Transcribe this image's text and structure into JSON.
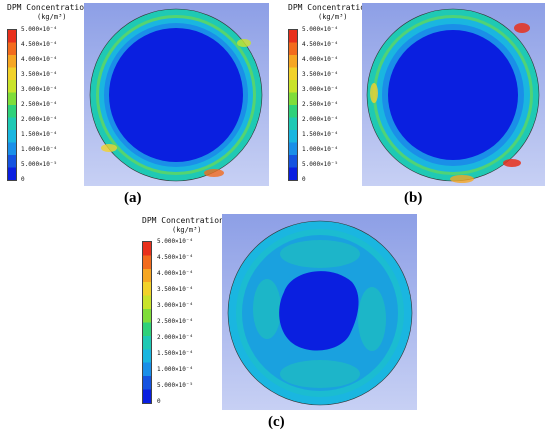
{
  "legend": {
    "title": "DPM Concentration/",
    "unit": "(kg/m³)",
    "ticks": [
      "5.000×10⁻⁴",
      "4.500×10⁻⁴",
      "4.000×10⁻⁴",
      "3.500×10⁻⁴",
      "3.000×10⁻⁴",
      "2.500×10⁻⁴",
      "2.000×10⁻⁴",
      "1.500×10⁻⁴",
      "1.000×10⁻⁴",
      "5.000×10⁻⁵",
      "0"
    ],
    "colors": [
      "#e8301c",
      "#f26b1d",
      "#f6a623",
      "#f2d22a",
      "#c9e32b",
      "#7fdd3a",
      "#2fd17a",
      "#1fc9b4",
      "#1ab6e0",
      "#1a8fe8",
      "#1553e0",
      "#0a1fe0"
    ]
  },
  "panels": [
    {
      "caption": "(a)"
    },
    {
      "caption": "(b)"
    },
    {
      "caption": "(c)"
    }
  ]
}
